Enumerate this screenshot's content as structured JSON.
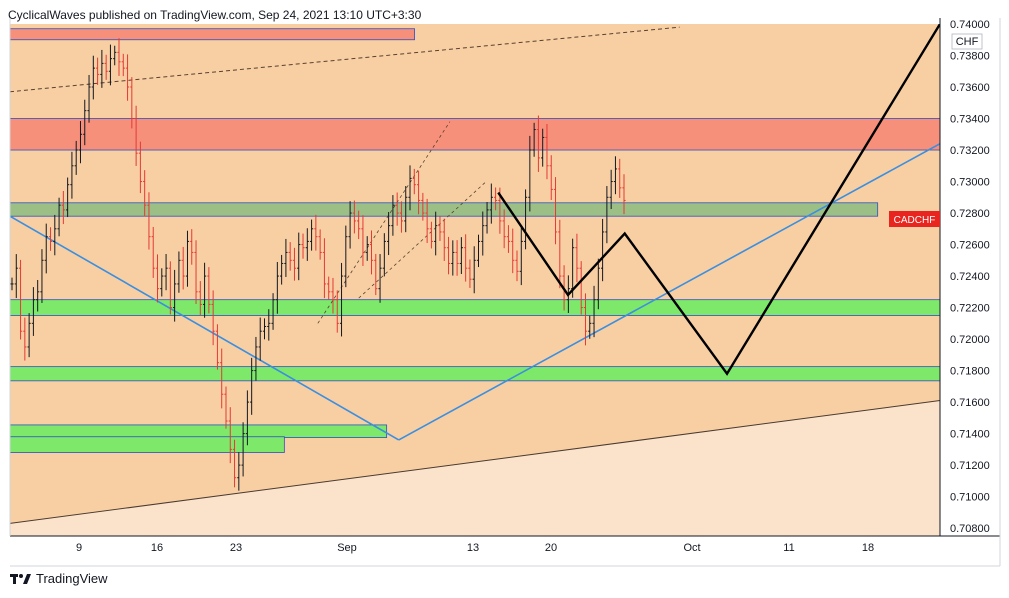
{
  "header": {
    "published_text": "CyclicalWaves published on TradingView.com, Sep 24, 2021 13:10 UTC+3:30"
  },
  "footer": {
    "brand": "TradingView",
    "logo_icon": "tradingview-logo-icon"
  },
  "price_axis": {
    "currency": "CHF",
    "symbol_badge": "CADCHF"
  },
  "colors": {
    "bg_upper": "#f7cfa3",
    "bg_lower": "#fbe2ca",
    "red_zone": "#f7907a",
    "green_zone": "#7ee86a",
    "olive_zone": "#9cbf85",
    "bull": "#131722",
    "bear": "#e53935",
    "trend_blue": "#3b8ee0",
    "badge": "#e8251f"
  },
  "chart_data": {
    "type": "candlestick",
    "symbol": "CADCHF",
    "xlabel": "",
    "ylabel": "",
    "ylim": [
      0.7075,
      0.74
    ],
    "y_ticks": [
      "0.74000",
      "0.73800",
      "0.73600",
      "0.73400",
      "0.73200",
      "0.73000",
      "0.72800",
      "0.72600",
      "0.72400",
      "0.72200",
      "0.72000",
      "0.71800",
      "0.71600",
      "0.71400",
      "0.71200",
      "0.71000",
      "0.70800"
    ],
    "x_ticks": [
      "9",
      "16",
      "23",
      "Sep",
      "13",
      "20",
      "Oct",
      "11",
      "18"
    ],
    "price_series": [
      0.7235,
      0.7245,
      0.7205,
      0.7195,
      0.721,
      0.7225,
      0.723,
      0.725,
      0.7265,
      0.7262,
      0.727,
      0.7285,
      0.7282,
      0.7298,
      0.731,
      0.732,
      0.733,
      0.7345,
      0.736,
      0.7372,
      0.7368,
      0.7375,
      0.737,
      0.7378,
      0.7382,
      0.7376,
      0.7372,
      0.736,
      0.734,
      0.7318,
      0.73,
      0.7285,
      0.7265,
      0.7245,
      0.7232,
      0.724,
      0.7245,
      0.722,
      0.7235,
      0.725,
      0.724,
      0.7262,
      0.7255,
      0.723,
      0.7222,
      0.724,
      0.7222,
      0.7205,
      0.7185,
      0.7165,
      0.7148,
      0.713,
      0.7112,
      0.712,
      0.714,
      0.716,
      0.718,
      0.7195,
      0.7205,
      0.7208,
      0.721,
      0.7225,
      0.724,
      0.7248,
      0.7255,
      0.725,
      0.7245,
      0.726,
      0.7258,
      0.7262,
      0.727,
      0.7265,
      0.7255,
      0.7235,
      0.723,
      0.7225,
      0.721,
      0.724,
      0.7265,
      0.728,
      0.7275,
      0.727,
      0.7255,
      0.726,
      0.725,
      0.7232,
      0.7245,
      0.7262,
      0.7272,
      0.7285,
      0.728,
      0.7275,
      0.729,
      0.7302,
      0.7298,
      0.7288,
      0.728,
      0.727,
      0.7262,
      0.7272,
      0.7268,
      0.7258,
      0.7248,
      0.7255,
      0.7248,
      0.7258,
      0.7245,
      0.7238,
      0.725,
      0.7262,
      0.7272,
      0.7282,
      0.729,
      0.7288,
      0.7275,
      0.7265,
      0.7262,
      0.725,
      0.7243,
      0.7262,
      0.729,
      0.732,
      0.7333,
      0.7315,
      0.7328,
      0.731,
      0.7295,
      0.7268,
      0.724,
      0.7225,
      0.7232,
      0.7258,
      0.7245,
      0.722,
      0.7205,
      0.721,
      0.7225,
      0.7245,
      0.7268,
      0.729,
      0.73,
      0.7308,
      0.7296,
      0.7288
    ],
    "series": [],
    "price_levels": {
      "red_zone_top": [
        0.7397,
        0.739
      ],
      "red_zone_main": [
        0.734,
        0.732
      ],
      "olive_zone": [
        0.72865,
        0.7278
      ],
      "green_zone_upper": [
        0.7225,
        0.7215
      ],
      "green_zone_lower": [
        0.71825,
        0.71735
      ],
      "green_zone_small_a": [
        0.71455,
        0.71375
      ],
      "green_zone_small_b": [
        0.7138,
        0.7128
      ]
    },
    "drawings": {
      "upper_dashed_channel": [
        [
          0,
          0.7357
        ],
        [
          0.72,
          0.7398
        ]
      ],
      "inner_dashed_a": [
        [
          0.331,
          0.721
        ],
        [
          0.473,
          0.7338
        ]
      ],
      "inner_dashed_b": [
        [
          0.375,
          0.7226
        ],
        [
          0.512,
          0.73
        ]
      ],
      "blue_down_trend": [
        [
          0,
          0.7278
        ],
        [
          0.418,
          0.7136
        ]
      ],
      "blue_up_trend": [
        [
          0.418,
          0.7136
        ],
        [
          1.0,
          0.7324
        ]
      ],
      "long_support": [
        [
          0,
          0.7083
        ],
        [
          1.0,
          0.7161
        ]
      ],
      "black_projection": [
        [
          0.525,
          0.7293
        ],
        [
          0.6,
          0.7228
        ],
        [
          0.661,
          0.7267
        ],
        [
          0.771,
          0.7178
        ],
        [
          1.0,
          0.74
        ]
      ]
    }
  }
}
